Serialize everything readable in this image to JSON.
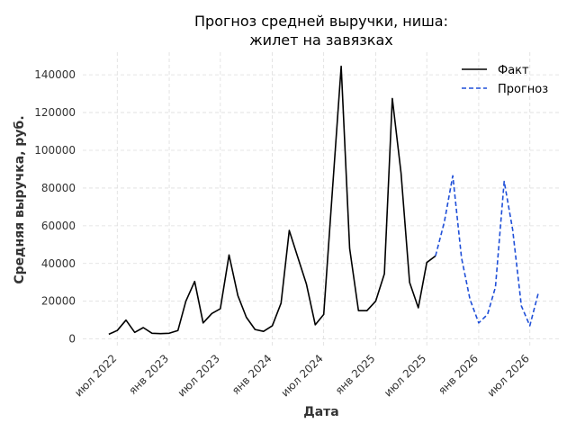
{
  "chart_data": {
    "type": "line",
    "title_lines": [
      "Прогноз средней выручки, ниша:",
      "жилет на завязках"
    ],
    "xlabel": "Дата",
    "ylabel": "Средняя выручка, руб.",
    "x_ticks": [
      {
        "date": "2022-07-01",
        "label": "июл 2022"
      },
      {
        "date": "2023-01-01",
        "label": "янв 2023"
      },
      {
        "date": "2023-07-01",
        "label": "июл 2023"
      },
      {
        "date": "2024-01-01",
        "label": "янв 2024"
      },
      {
        "date": "2024-07-01",
        "label": "июл 2024"
      },
      {
        "date": "2025-01-01",
        "label": "янв 2025"
      },
      {
        "date": "2025-07-01",
        "label": "июл 2025"
      },
      {
        "date": "2026-01-01",
        "label": "янв 2026"
      },
      {
        "date": "2026-07-01",
        "label": "июл 2026"
      }
    ],
    "y_ticks": [
      0,
      20000,
      40000,
      60000,
      80000,
      100000,
      120000,
      140000
    ],
    "y_tick_labels": [
      "0",
      "20000",
      "40000",
      "60000",
      "80000",
      "100000",
      "120000",
      "140000"
    ],
    "xlim": [
      "2022-03-01",
      "2026-10-15"
    ],
    "ylim": [
      -4000,
      152000
    ],
    "grid": true,
    "legend_position": "top-right",
    "series": [
      {
        "name": "Факт",
        "color": "#000000",
        "style": "solid",
        "x": [
          "2022-06-01",
          "2022-07-01",
          "2022-08-01",
          "2022-09-01",
          "2022-10-01",
          "2022-11-01",
          "2022-12-01",
          "2023-01-01",
          "2023-02-01",
          "2023-03-01",
          "2023-04-01",
          "2023-05-01",
          "2023-06-01",
          "2023-07-01",
          "2023-08-01",
          "2023-09-01",
          "2023-10-01",
          "2023-11-01",
          "2023-12-01",
          "2024-01-01",
          "2024-02-01",
          "2024-03-01",
          "2024-04-01",
          "2024-05-01",
          "2024-06-01",
          "2024-07-01",
          "2024-08-01",
          "2024-09-01",
          "2024-10-01",
          "2024-11-01",
          "2024-12-01",
          "2025-01-01",
          "2025-02-01",
          "2025-03-01",
          "2025-04-01",
          "2025-05-01",
          "2025-06-01",
          "2025-07-01",
          "2025-08-01"
        ],
        "y": [
          2500,
          4500,
          10000,
          3500,
          6000,
          3000,
          2800,
          3000,
          4500,
          20000,
          30500,
          8500,
          13500,
          16000,
          44500,
          23000,
          11500,
          5000,
          4000,
          7000,
          19000,
          57500,
          43000,
          29000,
          7500,
          13000,
          79000,
          144500,
          48000,
          15000,
          15000,
          20000,
          34500,
          127500,
          88000,
          30000,
          16500,
          40500,
          44000
        ]
      },
      {
        "name": "Прогноз",
        "color": "#1f4fd8",
        "style": "dashed",
        "x": [
          "2025-08-01",
          "2025-09-01",
          "2025-10-01",
          "2025-11-01",
          "2025-12-01",
          "2026-01-01",
          "2026-02-01",
          "2026-03-01",
          "2026-04-01",
          "2026-05-01",
          "2026-06-01",
          "2026-07-01",
          "2026-08-01"
        ],
        "y": [
          44000,
          62000,
          86500,
          43000,
          21000,
          8500,
          13000,
          27500,
          83500,
          58000,
          17500,
          7000,
          25000
        ]
      }
    ]
  }
}
